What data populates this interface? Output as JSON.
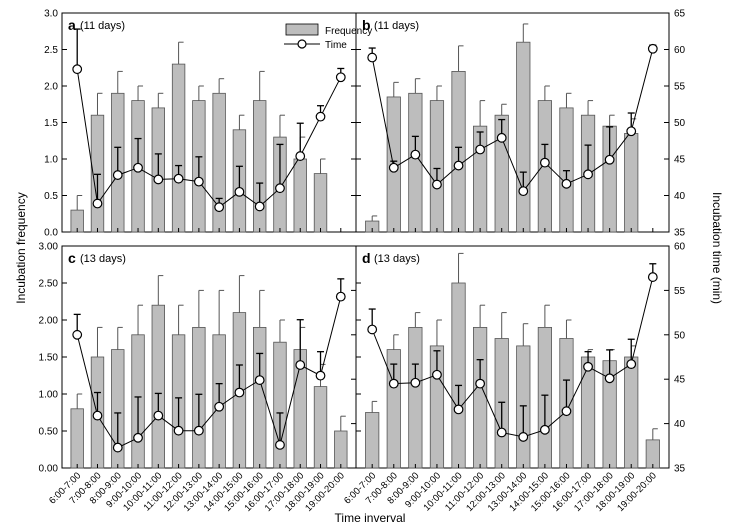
{
  "figure": {
    "ylabel_left": "Incubation frequency",
    "ylabel_right": "Incubation time (min)",
    "xlabel": "Time inverval",
    "legend": {
      "bar": "Frequency",
      "line": "Time"
    }
  },
  "chart_data": [
    {
      "panel": "a",
      "subtitle": "(11 days)",
      "type": "bar+line",
      "categories": [
        "6:00-7:00",
        "7:00-8:00",
        "8:00-9:00",
        "9:00-10:00",
        "10:00-11:00",
        "11:00-12:00",
        "12:00-13:00",
        "13:00-14:00",
        "14:00-15:00",
        "15:00-16:00",
        "16:00-17:00",
        "17:00-18:00",
        "18:00-19:00",
        "19:00-20:00"
      ],
      "ylim_left": [
        0,
        3.0
      ],
      "yticks_left": [
        "0.0",
        "0.5",
        "1.0",
        "1.5",
        "2.0",
        "2.5",
        "3.0"
      ],
      "ylim_right": [
        35,
        65
      ],
      "yticks_right": [],
      "series": [
        {
          "name": "Frequency",
          "type": "bar",
          "values": [
            0.3,
            1.6,
            1.9,
            1.8,
            1.7,
            2.3,
            1.8,
            1.9,
            1.4,
            1.8,
            1.3,
            1.0,
            0.8,
            null
          ],
          "err": [
            0.2,
            0.3,
            0.3,
            0.2,
            0.2,
            0.3,
            0.2,
            0.2,
            0.2,
            0.4,
            0.3,
            0.3,
            0.2,
            null
          ]
        },
        {
          "name": "Time",
          "type": "line",
          "axis": "right",
          "values": [
            57.3,
            38.9,
            42.8,
            43.8,
            42.2,
            42.3,
            41.9,
            38.4,
            40.5,
            38.5,
            41.0,
            45.4,
            50.8,
            56.2
          ],
          "err": [
            5.5,
            4.0,
            3.8,
            4.0,
            3.5,
            1.8,
            3.4,
            1.2,
            3.5,
            3.2,
            6.0,
            4.5,
            1.5,
            1.2
          ]
        }
      ]
    },
    {
      "panel": "b",
      "subtitle": "(11 days)",
      "type": "bar+line",
      "categories": [
        "6:00-7:00",
        "7:00-8:00",
        "8:00-9:00",
        "9:00-10:00",
        "10:00-11:00",
        "11:00-12:00",
        "12:00-13:00",
        "13:00-14:00",
        "14:00-15:00",
        "15:00-16:00",
        "16:00-17:00",
        "17:00-18:00",
        "18:00-19:00",
        "19:00-20:00"
      ],
      "ylim_left": [
        0,
        3.0
      ],
      "yticks_left": [],
      "ylim_right": [
        35,
        65
      ],
      "yticks_right": [
        "35",
        "40",
        "45",
        "50",
        "55",
        "60",
        "65"
      ],
      "series": [
        {
          "name": "Frequency",
          "type": "bar",
          "values": [
            0.15,
            1.85,
            1.9,
            1.8,
            2.2,
            1.45,
            1.6,
            2.6,
            1.8,
            1.7,
            1.6,
            1.45,
            1.35,
            null
          ],
          "err": [
            0.07,
            0.2,
            0.2,
            0.2,
            0.35,
            0.35,
            0.15,
            0.25,
            0.2,
            0.2,
            0.2,
            0.15,
            0.2,
            null
          ]
        },
        {
          "name": "Time",
          "type": "line",
          "axis": "right",
          "values": [
            58.9,
            43.8,
            45.6,
            41.5,
            44.1,
            46.3,
            47.9,
            40.6,
            44.5,
            41.6,
            42.9,
            44.9,
            48.8,
            60.1
          ],
          "err": [
            1.3,
            0.9,
            2.5,
            2.2,
            2.5,
            2.4,
            2.5,
            2.6,
            2.5,
            1.8,
            4.0,
            4.5,
            2.5,
            0.5
          ]
        }
      ]
    },
    {
      "panel": "c",
      "subtitle": "(13 days)",
      "type": "bar+line",
      "categories": [
        "6:00-7:00",
        "7:00-8:00",
        "8:00-9:00",
        "9:00-10:00",
        "10:00-11:00",
        "11:00-12:00",
        "12:00-13:00",
        "13:00-14:00",
        "14:00-15:00",
        "15:00-16:00",
        "16:00-17:00",
        "17:00-18:00",
        "18:00-19:00",
        "19:00-20:00"
      ],
      "ylim_left": [
        0,
        3.0
      ],
      "yticks_left": [
        "0.00",
        "0.50",
        "1.00",
        "1.50",
        "2.00",
        "2.50",
        "3.00"
      ],
      "ylim_right": [
        35,
        60
      ],
      "yticks_right": [],
      "series": [
        {
          "name": "Frequency",
          "type": "bar",
          "values": [
            0.8,
            1.5,
            1.6,
            1.8,
            2.2,
            1.8,
            1.9,
            1.8,
            2.1,
            1.9,
            1.7,
            1.6,
            1.1,
            0.5
          ],
          "err": [
            0.2,
            0.4,
            0.3,
            0.4,
            0.4,
            0.4,
            0.5,
            0.6,
            0.5,
            0.5,
            0.3,
            0.3,
            0.3,
            0.2
          ]
        },
        {
          "name": "Time",
          "type": "line",
          "axis": "right",
          "values": [
            50.0,
            40.9,
            37.3,
            38.4,
            40.9,
            39.2,
            39.2,
            41.9,
            43.5,
            44.9,
            37.6,
            46.6,
            45.4,
            54.3
          ],
          "err": [
            2.3,
            2.6,
            3.9,
            4.6,
            2.5,
            3.7,
            4.1,
            2.6,
            3.1,
            3.0,
            3.6,
            5.1,
            2.7,
            2.0
          ]
        }
      ]
    },
    {
      "panel": "d",
      "subtitle": "(13 days)",
      "type": "bar+line",
      "categories": [
        "6:00-7:00",
        "7:00-8:00",
        "8:00-9:00",
        "9:00-10:00",
        "10:00-11:00",
        "11:00-12:00",
        "12:00-13:00",
        "13:00-14:00",
        "14:00-15:00",
        "15:00-16:00",
        "16:00-17:00",
        "17:00-18:00",
        "18:00-19:00",
        "19:00-20:00"
      ],
      "ylim_left": [
        0,
        3.0
      ],
      "yticks_left": [],
      "ylim_right": [
        35,
        60
      ],
      "yticks_right": [
        "35",
        "40",
        "45",
        "50",
        "55",
        "60"
      ],
      "series": [
        {
          "name": "Frequency",
          "type": "bar",
          "values": [
            0.75,
            1.6,
            1.9,
            1.65,
            2.5,
            1.9,
            1.75,
            1.65,
            1.9,
            1.75,
            1.5,
            1.45,
            1.5,
            0.38
          ],
          "err": [
            0.15,
            0.2,
            0.2,
            0.35,
            0.4,
            0.3,
            0.35,
            0.3,
            0.3,
            0.25,
            0.1,
            0.15,
            0.15,
            0.15
          ]
        },
        {
          "name": "Time",
          "type": "line",
          "axis": "right",
          "values": [
            50.6,
            44.5,
            44.6,
            45.5,
            41.6,
            44.5,
            39.0,
            38.5,
            39.3,
            41.4,
            46.4,
            45.1,
            46.7,
            56.5
          ],
          "err": [
            2.3,
            2.2,
            2.1,
            2.7,
            2.7,
            2.7,
            3.4,
            3.5,
            3.9,
            3.5,
            1.7,
            3.2,
            2.8,
            1.5
          ]
        }
      ]
    }
  ]
}
